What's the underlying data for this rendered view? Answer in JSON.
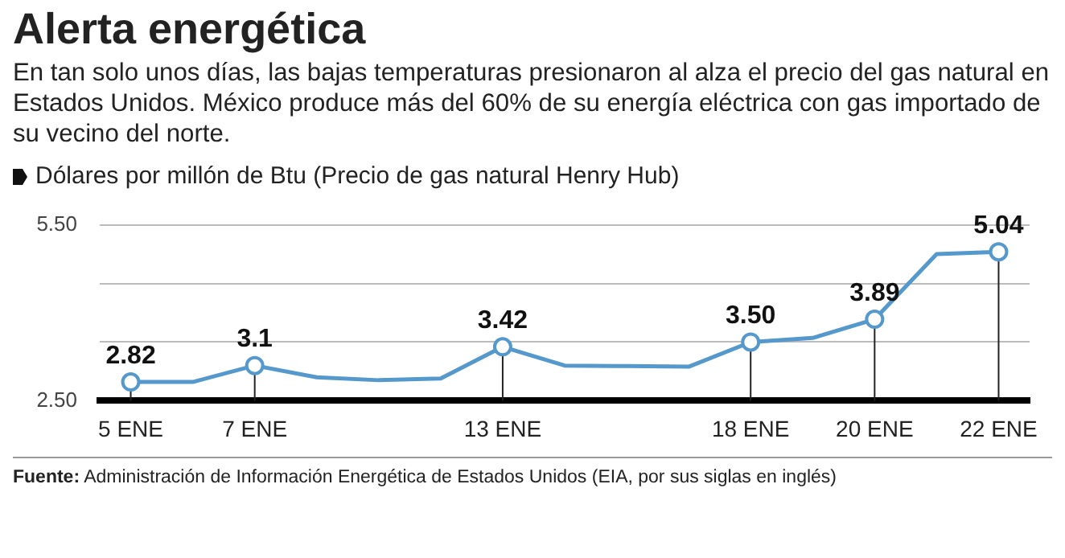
{
  "chart_data": {
    "type": "line",
    "title": "Alerta energética",
    "subtitle": "En tan solo unos días, las bajas temperaturas presionaron al alza el precio del gas natural en Estados Unidos. México produce más del 60% de su energía eléctrica con gas importado de su vecino del norte.",
    "ylabel": "Dólares por millón de Btu (Precio de gas natural Henry Hub)",
    "annotations": [
      "Fuente: Administración de Información Energética de Estados Unidos (EIA, por sus siglas en inglés)"
    ],
    "categories": [
      "5 ENE",
      null,
      "7 ENE",
      null,
      null,
      null,
      "13 ENE",
      null,
      null,
      null,
      "18 ENE",
      null,
      "20 ENE",
      null,
      "22 ENE"
    ],
    "values": [
      2.82,
      2.82,
      3.1,
      2.9,
      2.85,
      2.88,
      3.42,
      3.1,
      3.09,
      3.08,
      3.5,
      3.57,
      3.89,
      5.0,
      5.04
    ],
    "value_labels": [
      "2.82",
      null,
      "3.1",
      null,
      null,
      null,
      "3.42",
      null,
      null,
      null,
      "3.50",
      null,
      "3.89",
      null,
      "5.04"
    ],
    "color": "#5598cc",
    "line_style": "solid",
    "grid": true,
    "ylim": [
      2.5,
      5.5
    ],
    "yticks": [
      {
        "value": 2.5,
        "label": "2.50"
      },
      {
        "value": 3.5,
        "label": null
      },
      {
        "value": 4.5,
        "label": null
      },
      {
        "value": 5.5,
        "label": "5.50"
      }
    ]
  }
}
